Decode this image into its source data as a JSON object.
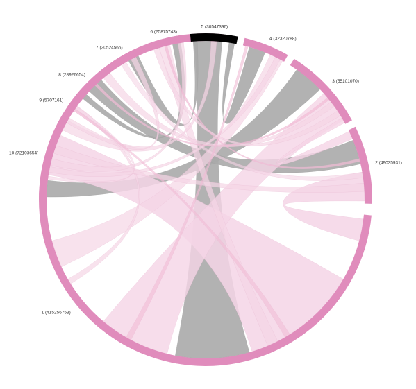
{
  "diagram": {
    "type": "chord",
    "segments": [
      {
        "id": "1",
        "label": "1 (415256753)",
        "value": 415256753,
        "start_deg": 83.5,
        "end_deg": 354.6,
        "color": "#e08cbc"
      },
      {
        "id": "2",
        "label": "2 (49035931)",
        "value": 49035931,
        "start_deg": 358.6,
        "end_deg": 26.0,
        "color": "#e08cbc"
      },
      {
        "id": "3",
        "label": "3 (55101070)",
        "value": 55101070,
        "start_deg": 28.5,
        "end_deg": 57.9,
        "color": "#e08cbc"
      },
      {
        "id": "4",
        "label": "4 (32320788)",
        "value": 32320788,
        "start_deg": 60.4,
        "end_deg": 76.4,
        "color": "#e08cbc"
      },
      {
        "id": "5",
        "label": "5 (30547396)",
        "value": 30547396,
        "start_deg": 78.8,
        "end_deg": 95.3,
        "color": "#000000"
      },
      {
        "id": "6",
        "label": "6 (25875743)",
        "value": 25875743,
        "start_deg": 97.2,
        "end_deg": 110.7,
        "color": "#e08cbc"
      },
      {
        "id": "7",
        "label": "7 (20524565)",
        "value": 20524565,
        "start_deg": 113.2,
        "end_deg": 123.8,
        "color": "#e08cbc"
      },
      {
        "id": "8",
        "label": "8 (28926654)",
        "value": 28926654,
        "start_deg": 126.3,
        "end_deg": 141.3,
        "color": "#e08cbc"
      },
      {
        "id": "9",
        "label": "9 (5707161)",
        "value": 5707161,
        "start_deg": 143.4,
        "end_deg": 146.4,
        "color": "#e08cbc"
      },
      {
        "id": "10",
        "label": "10 (72103654)",
        "value": 72103654,
        "start_deg": 148.6,
        "end_deg": 180.0,
        "color": "#e08cbc"
      }
    ],
    "links": [
      {
        "from": "5",
        "to": "1",
        "from_range": [
          84.0,
          94.0
        ],
        "to_range": [
          259.0,
          286.0
        ],
        "color": "#aaaaaa",
        "opacity": 0.9
      },
      {
        "from": "3",
        "to": "10",
        "from_range": [
          44.0,
          55.0
        ],
        "to_range": [
          173.0,
          179.0
        ],
        "color": "#aaaaaa",
        "opacity": 0.9
      },
      {
        "from": "2",
        "to": "8",
        "from_range": [
          13.0,
          22.0
        ],
        "to_range": [
          131.0,
          137.0
        ],
        "color": "#aaaaaa",
        "opacity": 0.9
      },
      {
        "from": "5",
        "to": "4",
        "from_range": [
          79.5,
          81.5
        ],
        "to_range": [
          68.0,
          74.0
        ],
        "color": "#aaaaaa",
        "opacity": 0.9
      },
      {
        "from": "5",
        "to": "7",
        "from_range": [
          93.0,
          94.5
        ],
        "to_range": [
          115.0,
          119.0
        ],
        "color": "#aaaaaa",
        "opacity": 0.9
      },
      {
        "from": "6",
        "to": "8",
        "from_range": [
          99.0,
          102.0
        ],
        "to_range": [
          138.5,
          140.5
        ],
        "color": "#aaaaaa",
        "opacity": 0.9
      },
      {
        "from": "1",
        "to": "2",
        "from_range": [
          345.0,
          353.0
        ],
        "to_range": [
          359.5,
          10.0
        ],
        "color": "#f5d5e6",
        "opacity": 0.85
      },
      {
        "from": "1",
        "to": "10",
        "from_range": [
          287.0,
          330.0
        ],
        "to_range": [
          156.0,
          171.0
        ],
        "color": "#f5d5e6",
        "opacity": 0.85
      },
      {
        "from": "1",
        "to": "3",
        "from_range": [
          230.0,
          256.0
        ],
        "to_range": [
          30.0,
          42.0
        ],
        "color": "#f5d5e6",
        "opacity": 0.8
      },
      {
        "from": "1",
        "to": "4",
        "from_range": [
          195.0,
          205.0
        ],
        "to_range": [
          61.0,
          66.0
        ],
        "color": "#f5d5e6",
        "opacity": 0.7
      },
      {
        "from": "1",
        "to": "6",
        "from_range": [
          293.0,
          297.0
        ],
        "to_range": [
          103.0,
          107.0
        ],
        "color": "#f5d5e6",
        "opacity": 0.7
      },
      {
        "from": "1",
        "to": "9",
        "from_range": [
          210.0,
          212.0
        ],
        "to_range": [
          143.8,
          145.5
        ],
        "color": "#f5d5e6",
        "opacity": 0.7
      },
      {
        "from": "2",
        "to": "3",
        "from_range": [
          22.5,
          25.5
        ],
        "to_range": [
          29.0,
          31.0
        ],
        "color": "#f5d5e6",
        "opacity": 0.8
      },
      {
        "from": "2",
        "to": "10",
        "from_range": [
          3.0,
          6.0
        ],
        "to_range": [
          160.0,
          163.0
        ],
        "color": "#f5d5e6",
        "opacity": 0.7
      },
      {
        "from": "3",
        "to": "6",
        "from_range": [
          32.0,
          34.0
        ],
        "to_range": [
          107.0,
          109.0
        ],
        "color": "#f5d5e6",
        "opacity": 0.7
      },
      {
        "from": "3",
        "to": "8",
        "from_range": [
          36.0,
          38.0
        ],
        "to_range": [
          127.0,
          130.0
        ],
        "color": "#f5d5e6",
        "opacity": 0.7
      },
      {
        "from": "4",
        "to": "10",
        "from_range": [
          62.0,
          64.0
        ],
        "to_range": [
          168.0,
          170.0
        ],
        "color": "#f5d5e6",
        "opacity": 0.7
      },
      {
        "from": "5",
        "to": "10",
        "from_range": [
          86.0,
          88.0
        ],
        "to_range": [
          150.0,
          154.0
        ],
        "color": "#f5d5e6",
        "opacity": 0.7
      },
      {
        "from": "6",
        "to": "10",
        "from_range": [
          98.0,
          100.0
        ],
        "to_range": [
          165.0,
          167.5
        ],
        "color": "#f5d5e6",
        "opacity": 0.7
      },
      {
        "from": "7",
        "to": "10",
        "from_range": [
          116.0,
          118.0
        ],
        "to_range": [
          149.0,
          151.0
        ],
        "color": "#f5d5e6",
        "opacity": 0.7
      },
      {
        "from": "7",
        "to": "2",
        "from_range": [
          120.0,
          122.0
        ],
        "to_range": [
          8.0,
          10.0
        ],
        "color": "#f5d5e6",
        "opacity": 0.6
      },
      {
        "from": "9",
        "to": "10",
        "from_range": [
          144.0,
          146.0
        ],
        "to_range": [
          171.5,
          172.5
        ],
        "color": "#f5d5e6",
        "opacity": 0.6
      },
      {
        "from": "6",
        "to": "2",
        "from_range": [
          104.0,
          105.0
        ],
        "to_range": [
          14.0,
          15.0
        ],
        "color": "#f2bcd6",
        "opacity": 0.7
      },
      {
        "from": "8",
        "to": "3",
        "from_range": [
          133.0,
          134.0
        ],
        "to_range": [
          39.0,
          40.0
        ],
        "color": "#f2bcd6",
        "opacity": 0.7
      },
      {
        "from": "4",
        "to": "1",
        "from_range": [
          74.5,
          75.5
        ],
        "to_range": [
          240.0,
          242.0
        ],
        "color": "#f2bcd6",
        "opacity": 0.6
      },
      {
        "from": "9",
        "to": "1",
        "from_range": [
          145.0,
          146.0
        ],
        "to_range": [
          300.0,
          302.0
        ],
        "color": "#f2bcd6",
        "opacity": 0.6
      }
    ]
  }
}
